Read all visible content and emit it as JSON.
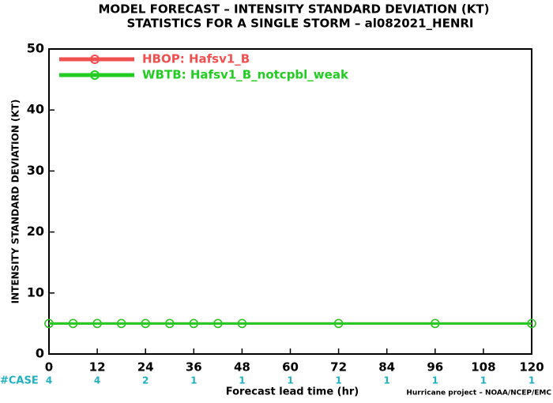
{
  "chart_data": {
    "type": "line",
    "title": "MODEL FORECAST – INTENSITY STANDARD DEVIATION (KT)",
    "subtitle": "STATISTICS FOR A SINGLE STORM – al082021_HENRI",
    "y_label": "INTENSITY STANDARD DEVIATION (KT)",
    "x_label": "Forecast lead time (hr)",
    "footer": "Hurricane project – NOAA/NCEP/EMC",
    "x": [
      0,
      6,
      12,
      18,
      24,
      30,
      36,
      42,
      48,
      72,
      96,
      120
    ],
    "series": [
      {
        "name": "HBOP: Hafsv1_B",
        "color": "#f05050",
        "values": [
          5,
          5,
          5,
          5,
          5,
          5,
          5,
          5,
          5,
          5,
          5,
          5
        ]
      },
      {
        "name": "WBTB: Hafsv1_B_notcpbl_weak",
        "color": "#22cc22",
        "values": [
          5,
          5,
          5,
          5,
          5,
          5,
          5,
          5,
          5,
          5,
          5,
          5
        ]
      }
    ],
    "xlim": [
      0,
      120
    ],
    "xticks": [
      0,
      12,
      24,
      36,
      48,
      60,
      72,
      84,
      96,
      108,
      120
    ],
    "ylim": [
      0,
      50
    ],
    "yticks": [
      0,
      10,
      20,
      30,
      40,
      50
    ],
    "case_label": "#CASE",
    "case_counts": [
      4,
      4,
      2,
      1,
      1,
      1,
      1,
      1,
      1,
      1,
      1
    ],
    "case_color": "#20b0c0",
    "legend": "upper left"
  }
}
